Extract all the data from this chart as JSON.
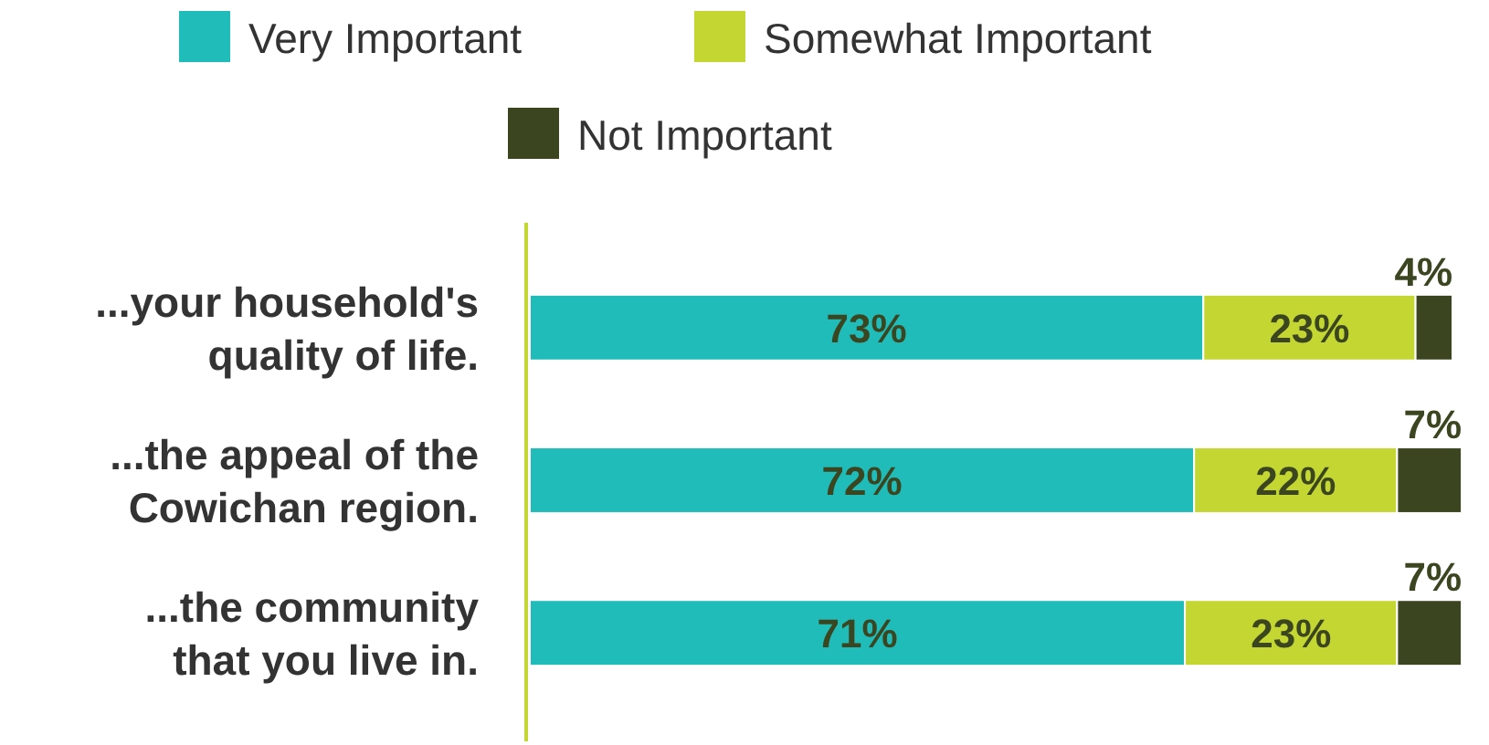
{
  "chart_data": {
    "type": "bar",
    "orientation": "horizontal",
    "stacked": true,
    "legend": "top",
    "categories": [
      "...your household's quality of life.",
      "...the appeal of the Cowichan region.",
      "...the community that you live in."
    ],
    "series": [
      {
        "name": "Very Important",
        "color": "#1fbcb9",
        "values": [
          73,
          72,
          71
        ],
        "value_labels": [
          "73%",
          "72%",
          "71%"
        ]
      },
      {
        "name": "Somewhat Important",
        "color": "#c3d631",
        "values": [
          23,
          22,
          23
        ],
        "value_labels": [
          "23%",
          "22%",
          "23%"
        ]
      },
      {
        "name": "Not Important",
        "color": "#3b4520",
        "values": [
          4,
          7,
          7
        ],
        "value_labels": [
          "4%",
          "7%",
          "7%"
        ]
      }
    ]
  }
}
